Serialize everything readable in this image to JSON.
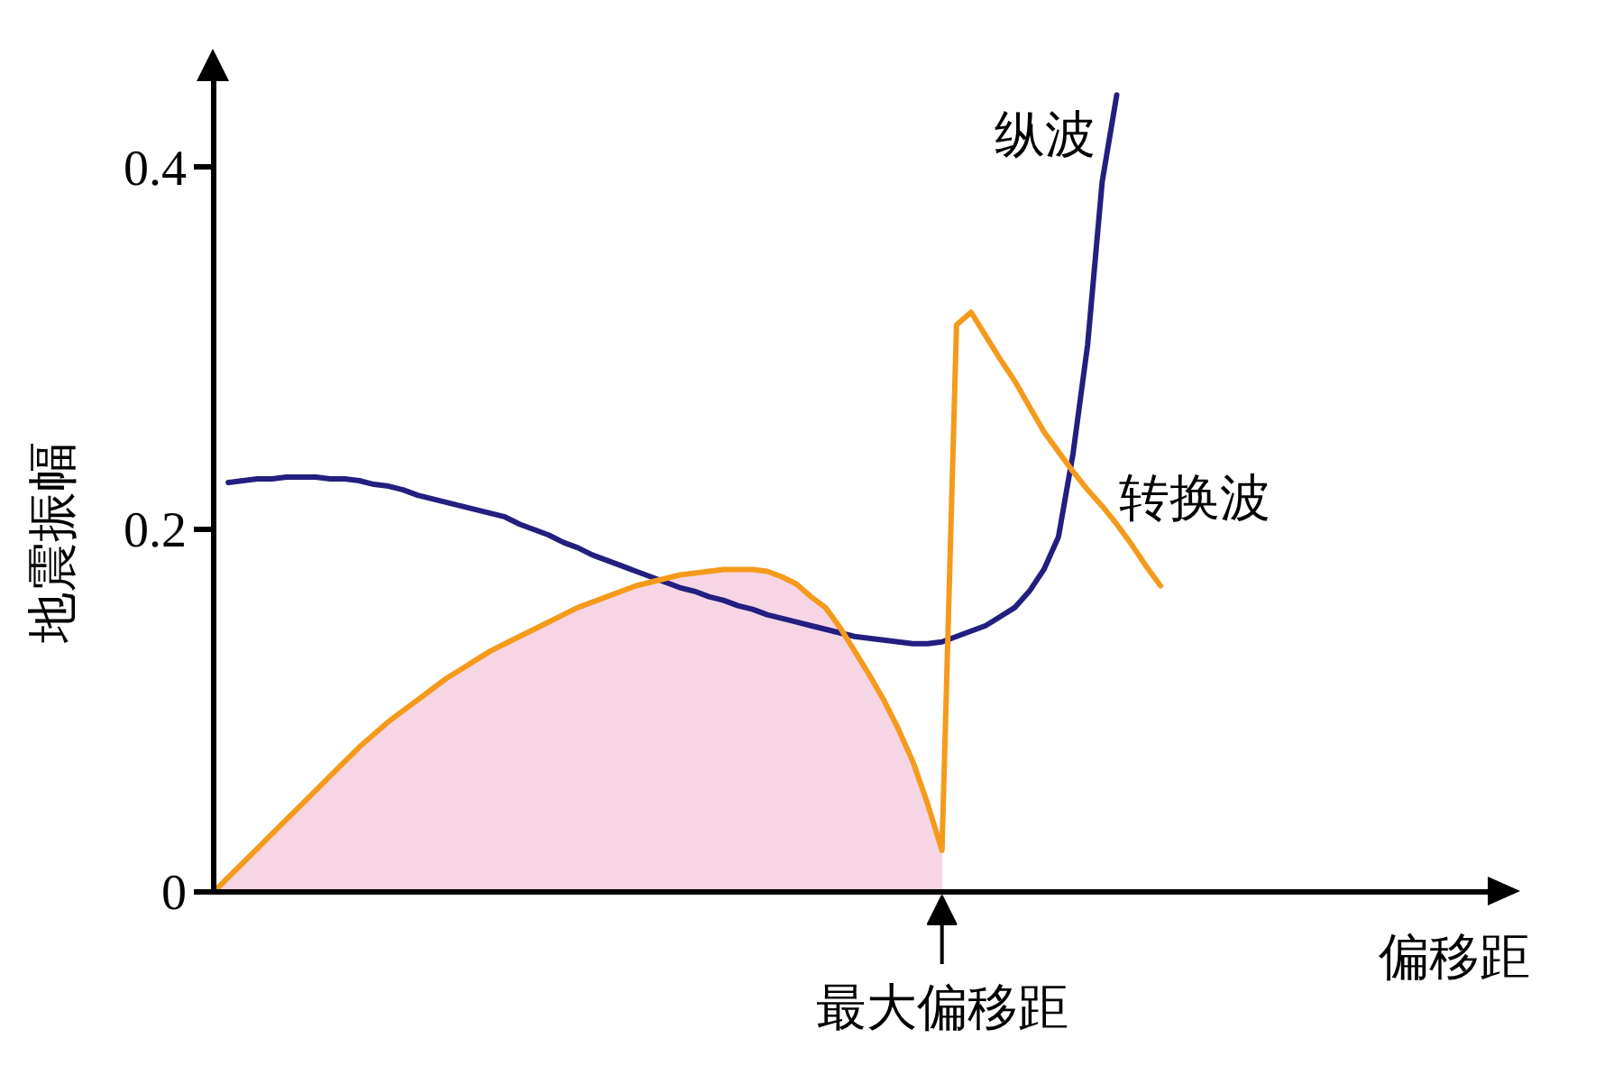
{
  "chart_data": {
    "type": "line",
    "xlabel": "偏移距",
    "ylabel": "地震振幅",
    "categories": [
      null,
      null,
      null,
      null,
      null,
      null,
      null,
      null,
      null,
      null,
      null,
      null,
      null,
      null,
      null,
      null,
      null,
      null,
      null,
      null,
      null,
      null,
      null,
      null,
      null,
      null,
      null,
      null,
      null,
      null,
      null,
      null,
      null,
      null,
      null,
      null,
      null,
      null,
      null,
      null,
      null,
      null,
      null,
      null,
      null,
      null,
      null,
      null,
      null,
      null,
      null,
      null,
      null,
      null,
      null,
      null,
      null,
      null,
      null,
      null,
      null,
      null,
      null,
      null,
      null,
      null
    ],
    "ylim": [
      0,
      0.46
    ],
    "yticks": [
      0,
      0.2,
      0.4
    ],
    "tick_labels": "y",
    "grid": false,
    "series": [
      {
        "type": "area",
        "color": "#f6d5e5",
        "values": [
          0,
          0.008,
          0.016,
          0.024,
          0.032,
          0.04,
          0.048,
          0.056,
          0.064,
          0.072,
          0.08,
          0.087,
          0.094,
          0.1,
          0.106,
          0.112,
          0.118,
          0.123,
          0.128,
          0.133,
          0.137,
          0.141,
          0.145,
          0.149,
          0.153,
          0.157,
          0.16,
          0.163,
          0.166,
          0.169,
          0.171,
          0.173,
          0.175,
          0.176,
          0.177,
          0.178,
          0.178,
          0.178,
          0.177,
          0.174,
          0.17,
          0.163,
          0.157,
          0.146,
          0.133,
          0.12,
          0.106,
          0.09,
          0.072,
          0.049,
          0.023,
          null,
          null,
          null,
          null,
          null,
          null,
          null,
          null,
          null,
          null,
          null,
          null,
          null,
          null,
          null
        ]
      },
      {
        "name": "纵波",
        "color": "#231f80",
        "values": [
          null,
          0.226,
          0.227,
          0.228,
          0.228,
          0.229,
          0.229,
          0.229,
          0.228,
          0.228,
          0.227,
          0.225,
          0.224,
          0.222,
          0.219,
          0.217,
          0.215,
          0.213,
          0.211,
          0.209,
          0.207,
          0.203,
          0.2,
          0.197,
          0.193,
          0.19,
          0.186,
          0.183,
          0.18,
          0.177,
          0.174,
          0.171,
          0.168,
          0.166,
          0.163,
          0.161,
          0.158,
          0.156,
          0.153,
          0.151,
          0.149,
          0.147,
          0.145,
          0.143,
          0.141,
          0.14,
          0.139,
          0.138,
          0.137,
          0.137,
          0.138,
          0.141,
          0.144,
          0.147,
          0.152,
          0.157,
          0.166,
          0.178,
          0.196,
          0.242,
          0.302,
          0.392,
          0.44,
          null,
          null,
          null
        ]
      },
      {
        "name": "转换波",
        "color": "#f59a1b",
        "values": [
          0,
          0.008,
          0.016,
          0.024,
          0.032,
          0.04,
          0.048,
          0.056,
          0.064,
          0.072,
          0.08,
          0.087,
          0.094,
          0.1,
          0.106,
          0.112,
          0.118,
          0.123,
          0.128,
          0.133,
          0.137,
          0.141,
          0.145,
          0.149,
          0.153,
          0.157,
          0.16,
          0.163,
          0.166,
          0.169,
          0.171,
          0.173,
          0.175,
          0.176,
          0.177,
          0.178,
          0.178,
          0.178,
          0.177,
          0.174,
          0.17,
          0.163,
          0.157,
          0.146,
          0.133,
          0.12,
          0.106,
          0.09,
          0.072,
          0.049,
          0.023,
          0.313,
          0.32,
          0.307,
          0.294,
          0.282,
          0.268,
          0.254,
          0.243,
          0.232,
          0.222,
          0.213,
          0.203,
          0.192,
          0.18,
          0.169
        ]
      }
    ],
    "annotations": [
      "最大偏移距"
    ]
  }
}
